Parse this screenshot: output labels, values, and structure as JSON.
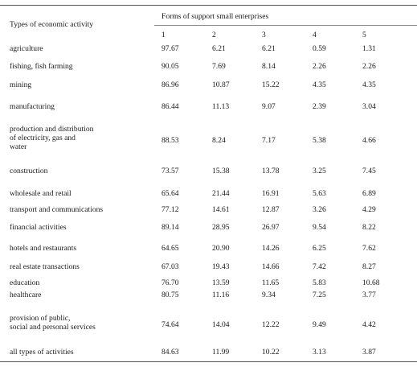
{
  "table": {
    "header": {
      "row_label": "Types of economic activity",
      "group_label": "Forms of support small enterprises",
      "columns": [
        "1",
        "2",
        "3",
        "4",
        "5"
      ]
    },
    "rows": [
      {
        "label": "agriculture",
        "values": [
          "97.67",
          "6.21",
          "6.21",
          "0.59",
          "1.31"
        ]
      },
      {
        "label": "fishing, fish farming",
        "values": [
          "90.05",
          "7.69",
          "8.14",
          "2.26",
          "2.26"
        ]
      },
      {
        "label": "mining",
        "values": [
          "86.96",
          "10.87",
          "15.22",
          "4.35",
          "4.35"
        ]
      },
      {
        "label": "manufacturing",
        "values": [
          "86.44",
          "11.13",
          "9.07",
          "2.39",
          "3.04"
        ]
      },
      {
        "label": "production and distribution\nof electricity, gas and\nwater",
        "values": [
          "88.53",
          "8.24",
          "7.17",
          "5.38",
          "4.66"
        ]
      },
      {
        "label": "construction",
        "values": [
          "73.57",
          "15.38",
          "13.78",
          "3.25",
          "7.45"
        ]
      },
      {
        "label": "wholesale and retail",
        "values": [
          "65.64",
          "21.44",
          "16.91",
          "5.63",
          "6.89"
        ]
      },
      {
        "label": "transport and communications",
        "values": [
          "77.12",
          "14.61",
          "12.87",
          "3.26",
          "4.29"
        ]
      },
      {
        "label": "financial activities",
        "values": [
          "89.14",
          "28.95",
          "26.97",
          "9.54",
          "8.22"
        ]
      },
      {
        "label": "hotels and restaurants",
        "values": [
          "64.65",
          "20.90",
          "14.26",
          "6.25",
          "7.62"
        ]
      },
      {
        "label": "real estate transactions",
        "values": [
          "67.03",
          "19.43",
          "14.66",
          "7.42",
          "8.27"
        ]
      },
      {
        "label": "education",
        "values": [
          "76.70",
          "13.59",
          "11.65",
          "5.83",
          "10.68"
        ]
      },
      {
        "label": "healthcare",
        "values": [
          "80.75",
          "11.16",
          "9.34",
          "7.25",
          "3.77"
        ]
      },
      {
        "label": "provision of public,\nsocial and personal services",
        "values": [
          "74.64",
          "14.04",
          "12.22",
          "9.49",
          "4.42"
        ]
      },
      {
        "label": "all types of activities",
        "values": [
          "84.63",
          "11.99",
          "10.22",
          "3.13",
          "3.87"
        ]
      }
    ]
  }
}
